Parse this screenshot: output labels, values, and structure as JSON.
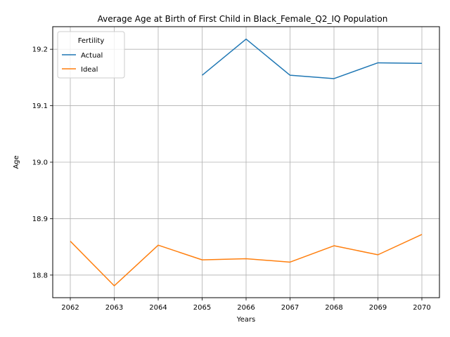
{
  "chart_data": {
    "type": "line",
    "title": "Average Age at Birth of First Child in Black_Female_Q2_IQ Population",
    "xlabel": "Years",
    "ylabel": "Age",
    "x": [
      2062,
      2063,
      2064,
      2065,
      2066,
      2067,
      2068,
      2069,
      2070
    ],
    "xlim": [
      2061.6,
      2070.4
    ],
    "ylim": [
      18.76,
      19.24
    ],
    "yticks": [
      18.8,
      18.9,
      19.0,
      19.1,
      19.2
    ],
    "ytick_labels": [
      "18.8",
      "18.9",
      "19.0",
      "19.1",
      "19.2"
    ],
    "grid": true,
    "legend": {
      "title": "Fertility",
      "position": "top-left"
    },
    "series": [
      {
        "name": "Actual",
        "color": "#1f77b4",
        "values": [
          null,
          null,
          null,
          19.154,
          19.218,
          19.154,
          19.148,
          19.176,
          19.175
        ]
      },
      {
        "name": "Ideal",
        "color": "#ff7f0e",
        "values": [
          18.86,
          18.781,
          18.853,
          18.827,
          18.829,
          18.823,
          18.852,
          18.836,
          18.872
        ]
      }
    ]
  }
}
